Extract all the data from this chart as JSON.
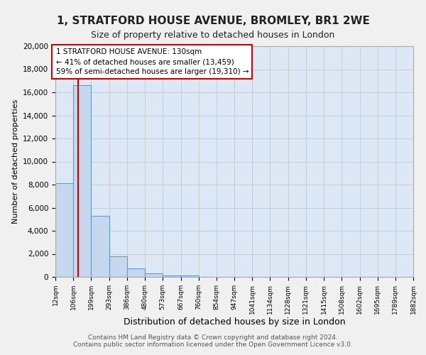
{
  "title": "1, STRATFORD HOUSE AVENUE, BROMLEY, BR1 2WE",
  "subtitle": "Size of property relative to detached houses in London",
  "xlabel": "Distribution of detached houses by size in London",
  "ylabel": "Number of detached properties",
  "property_label": "1 STRATFORD HOUSE AVENUE: 130sqm",
  "pct_smaller": 41,
  "count_smaller": 13459,
  "pct_larger": 59,
  "count_larger": 19310,
  "bin_edges": [
    12,
    106,
    199,
    293,
    386,
    480,
    573,
    667,
    760,
    854,
    947,
    1041,
    1134,
    1228,
    1321,
    1415,
    1508,
    1602,
    1695,
    1789,
    1882
  ],
  "bin_labels": [
    "12sqm",
    "106sqm",
    "199sqm",
    "293sqm",
    "386sqm",
    "480sqm",
    "573sqm",
    "667sqm",
    "760sqm",
    "854sqm",
    "947sqm",
    "1041sqm",
    "1134sqm",
    "1228sqm",
    "1321sqm",
    "1415sqm",
    "1508sqm",
    "1602sqm",
    "1695sqm",
    "1789sqm",
    "1882sqm"
  ],
  "bar_heights": [
    8100,
    16600,
    5300,
    1800,
    750,
    280,
    150,
    130,
    0,
    0,
    0,
    0,
    0,
    0,
    0,
    0,
    0,
    0,
    0,
    0
  ],
  "bar_color": "#c5d8ee",
  "bar_edge_color": "#6699cc",
  "vline_x": 130,
  "vline_color": "#cc0000",
  "annotation_box_color": "#cc0000",
  "ylim": [
    0,
    20000
  ],
  "yticks": [
    0,
    2000,
    4000,
    6000,
    8000,
    10000,
    12000,
    14000,
    16000,
    18000,
    20000
  ],
  "grid_color": "#cccccc",
  "bg_color": "#dce8f5",
  "fig_bg_color": "#f0f0f0",
  "footer_line1": "Contains HM Land Registry data © Crown copyright and database right 2024.",
  "footer_line2": "Contains public sector information licensed under the Open Government Licence v3.0."
}
